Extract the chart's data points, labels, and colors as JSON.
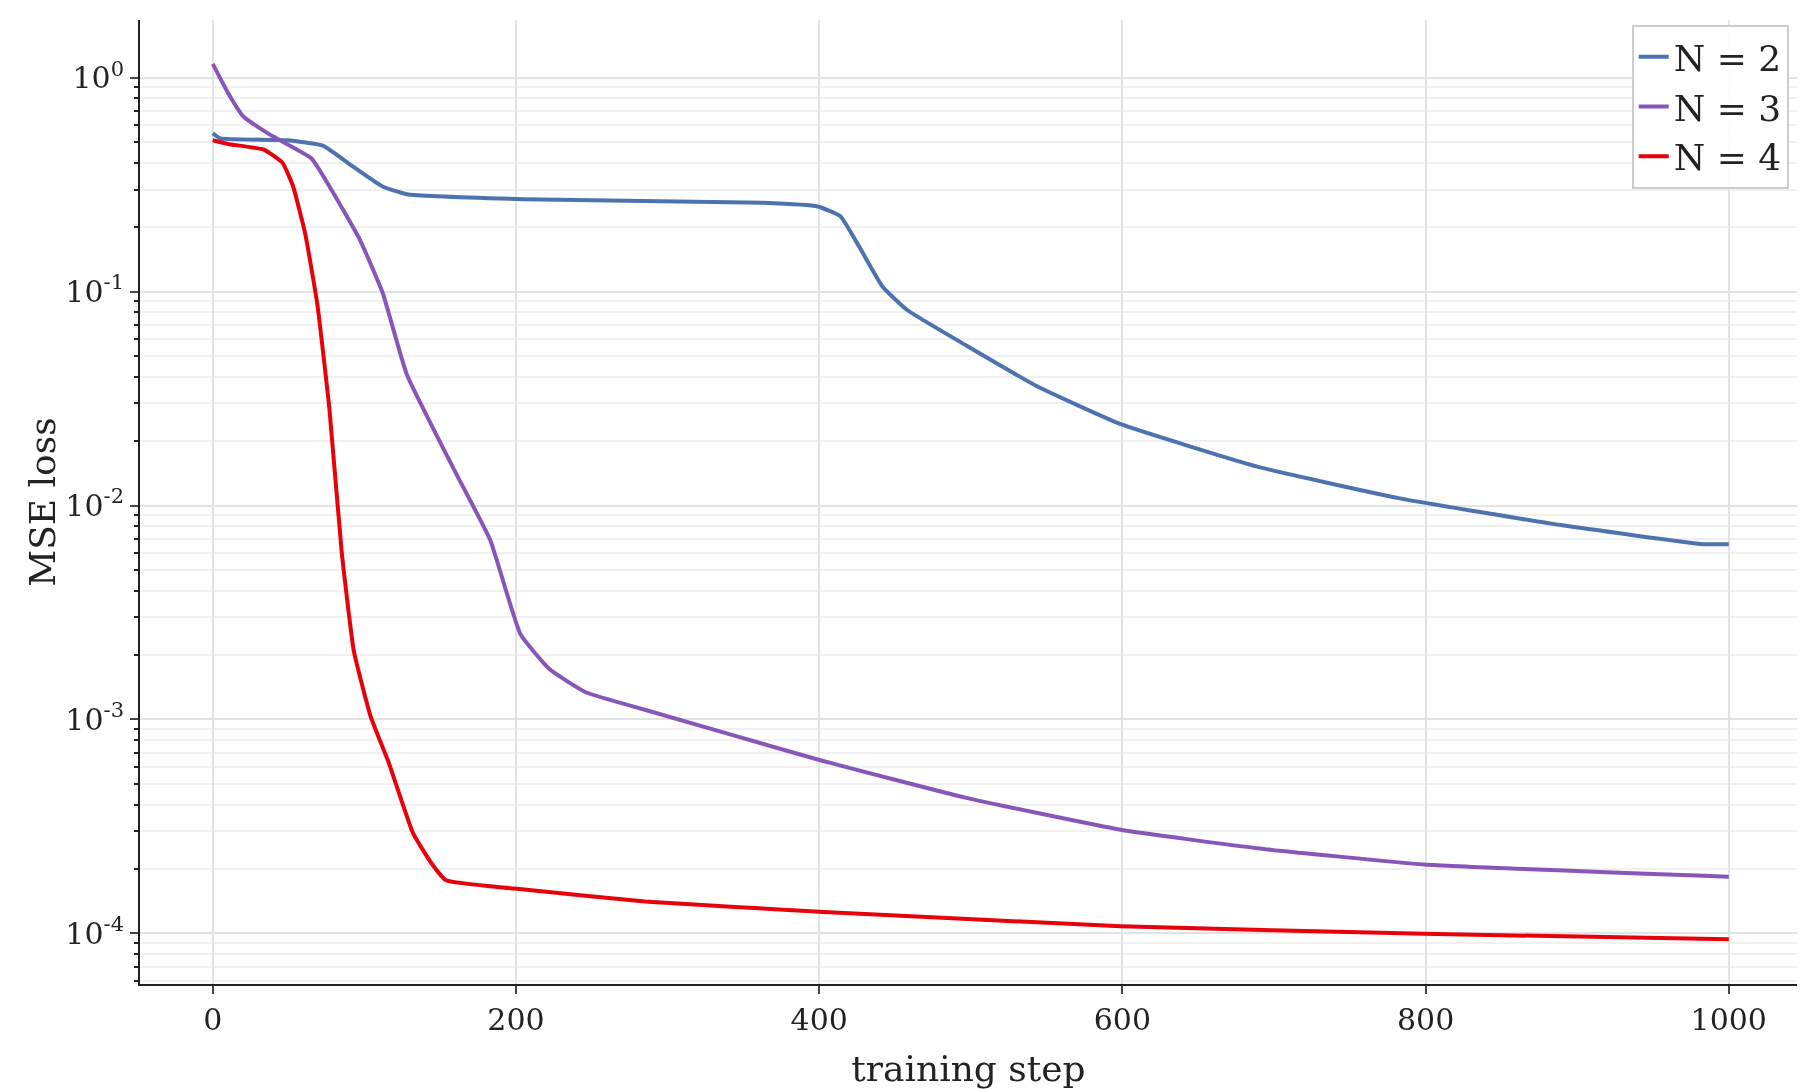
{
  "chart_data": {
    "type": "line",
    "xlabel": "training step",
    "ylabel": "MSE loss",
    "log": "y",
    "grid": true,
    "legend": "top right",
    "marker": "none",
    "line_style": "solid",
    "xlim": [
      -48,
      1045
    ],
    "xticks": [
      0,
      200,
      400,
      600,
      800,
      1000
    ],
    "ylim": [
      5.8e-05,
      1.86
    ],
    "yticks": [
      {
        "value": 1,
        "label": "10$^{0}$"
      },
      {
        "value": 0.1,
        "label": "10$^{-1}$"
      },
      {
        "value": 0.01,
        "label": "10$^{-2}$"
      },
      {
        "value": 0.001,
        "label": "10$^{-3}$"
      },
      {
        "value": 0.0001,
        "label": "10$^{-4}$"
      }
    ],
    "series": [
      {
        "name": "N = 2",
        "color": "#4c72b0",
        "x": [
          0,
          5,
          49,
          73,
          89,
          112,
          128,
          206,
          363,
          399,
          414,
          426,
          442,
          458,
          497,
          544,
          599,
          689,
          783,
          889,
          983,
          1000
        ],
        "values": [
          0.55,
          0.52,
          0.51,
          0.48,
          0.4,
          0.31,
          0.285,
          0.27,
          0.26,
          0.25,
          0.225,
          0.164,
          0.105,
          0.082,
          0.056,
          0.036,
          0.024,
          0.0152,
          0.0108,
          0.0081,
          0.0066,
          0.0066
        ]
      },
      {
        "name": "N = 3",
        "color": "#8856b9",
        "x": [
          0,
          10,
          20,
          38,
          65,
          77,
          97,
          112,
          128,
          159,
          183,
          203,
          222,
          246,
          285,
          399,
          497,
          599,
          689,
          799,
          1000
        ],
        "values": [
          1.16,
          0.85,
          0.66,
          0.54,
          0.42,
          0.31,
          0.175,
          0.099,
          0.041,
          0.0148,
          0.0069,
          0.0025,
          0.00172,
          0.00134,
          0.00111,
          0.00065,
          0.00043,
          0.000305,
          0.00025,
          0.00021,
          0.000184
        ]
      },
      {
        "name": "N = 4",
        "color": "#e8000b",
        "x": [
          0,
          10,
          34,
          46,
          53,
          61,
          69,
          77,
          85,
          93,
          104,
          116,
          132,
          144,
          154,
          199,
          285,
          403,
          599,
          799,
          1000
        ],
        "values": [
          0.51,
          0.49,
          0.46,
          0.4,
          0.31,
          0.186,
          0.087,
          0.028,
          0.0061,
          0.0021,
          0.00104,
          0.00063,
          0.000295,
          0.000214,
          0.000177,
          0.000162,
          0.000141,
          0.000126,
          0.000108,
          9.95e-05,
          9.4e-05
        ]
      }
    ]
  }
}
